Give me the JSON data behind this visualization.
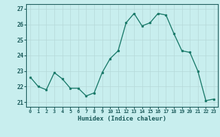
{
  "x": [
    0,
    1,
    2,
    3,
    4,
    5,
    6,
    7,
    8,
    9,
    10,
    11,
    12,
    13,
    14,
    15,
    16,
    17,
    18,
    19,
    20,
    21,
    22,
    23
  ],
  "y": [
    22.6,
    22.0,
    21.8,
    22.9,
    22.5,
    21.9,
    21.9,
    21.4,
    21.6,
    22.9,
    23.8,
    24.3,
    26.1,
    26.7,
    25.9,
    26.1,
    26.7,
    26.6,
    25.4,
    24.3,
    24.2,
    23.0,
    21.1,
    21.2
  ],
  "line_color": "#1a7a6a",
  "bg_color": "#c8eeee",
  "grid_color": "#b5d8d8",
  "tick_color": "#1a5a5a",
  "xlabel": "Humidex (Indice chaleur)",
  "ylabel_ticks": [
    21,
    22,
    23,
    24,
    25,
    26,
    27
  ],
  "xlim": [
    -0.5,
    23.5
  ],
  "ylim": [
    20.7,
    27.3
  ],
  "xtick_labels": [
    "0",
    "1",
    "2",
    "3",
    "4",
    "5",
    "6",
    "7",
    "8",
    "9",
    "10",
    "11",
    "12",
    "13",
    "14",
    "15",
    "16",
    "17",
    "18",
    "19",
    "20",
    "21",
    "22",
    "23"
  ]
}
